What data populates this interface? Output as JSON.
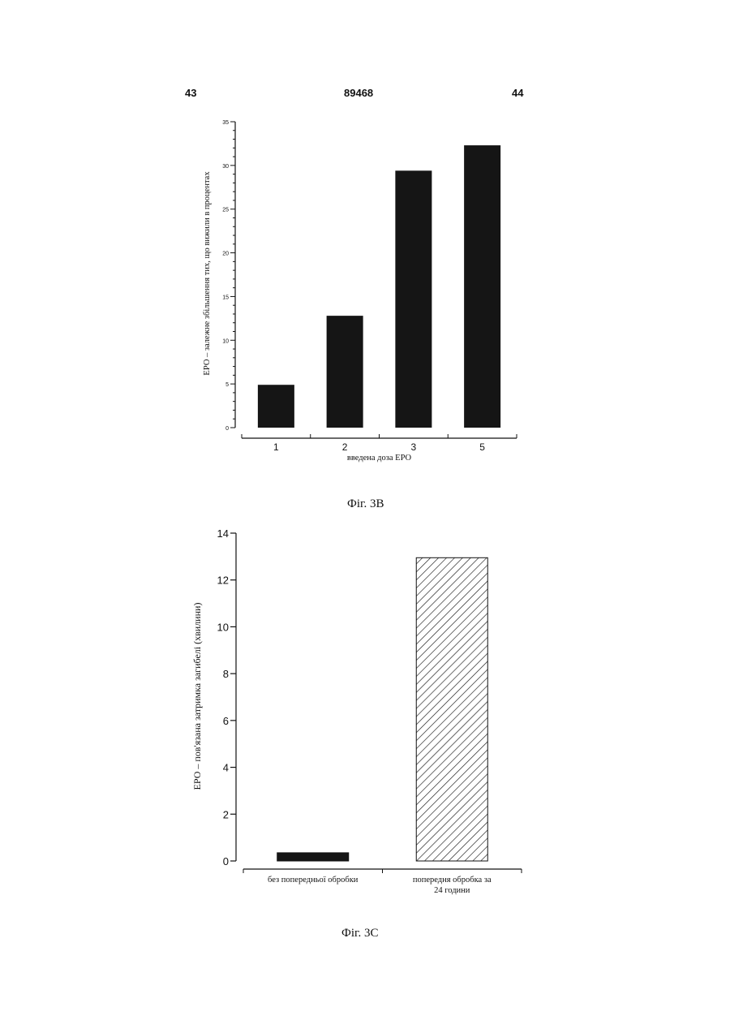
{
  "header": {
    "page_left": "43",
    "patent_number": "89468",
    "page_right": "44"
  },
  "figures": {
    "fig_b": {
      "caption": "Фіг. 3В"
    },
    "fig_c": {
      "caption": "Фіг. 3С"
    }
  },
  "colors": {
    "bar_fill": "#151515",
    "axis": "#111111",
    "hatch": "#1a1a1a"
  },
  "chart_data": [
    {
      "type": "bar",
      "categories": [
        "1",
        "2",
        "3",
        "5"
      ],
      "values": [
        4.9,
        12.8,
        29.4,
        32.3
      ],
      "xlabel": "введена доза ЕРО",
      "ylabel": "ЕРО – залежне збільшення тих, що вижили в процентах",
      "ylim": [
        0,
        35
      ],
      "yticks": [
        0,
        5,
        10,
        15,
        20,
        25,
        30,
        35
      ],
      "grid": false,
      "legend": "none"
    },
    {
      "type": "bar",
      "categories": [
        "без попередньої обробки",
        "попередня обробка за 24 години"
      ],
      "values": [
        0.35,
        12.95
      ],
      "fills": [
        "solid",
        "hatched"
      ],
      "xlabel": "",
      "ylabel": "ЕРО – пов'язана затримка загибелі (хвилини)",
      "ylim": [
        0,
        14
      ],
      "yticks": [
        0,
        2,
        4,
        6,
        8,
        10,
        12,
        14
      ],
      "grid": false,
      "legend": "none"
    }
  ]
}
